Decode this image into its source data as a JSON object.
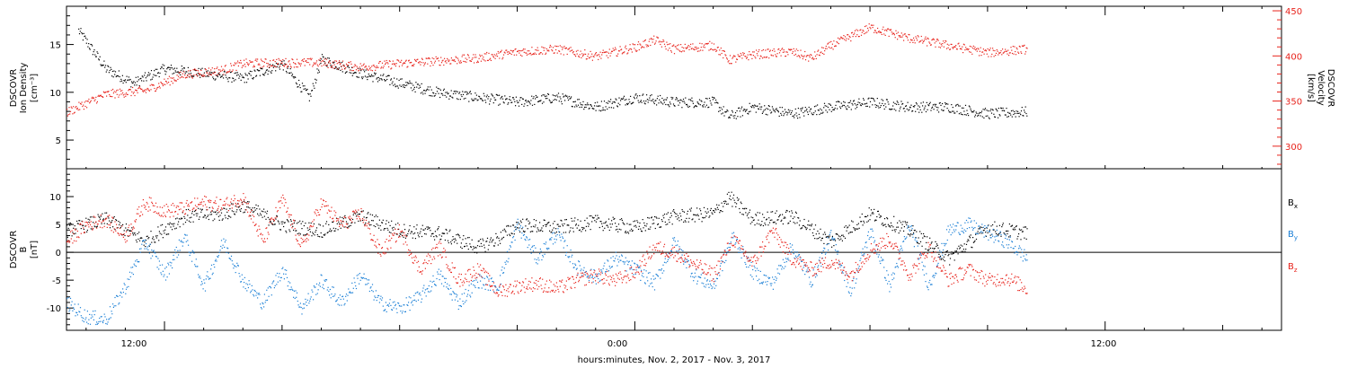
{
  "figure": {
    "xlabel": "hours:minutes, Nov.  2, 2017 - Nov.  3, 2017",
    "x_ticks": [
      "12:00",
      "0:00",
      "12:00"
    ],
    "x_range_hours": [
      -14.5,
      16.5
    ],
    "x_data_end_hours": 10.1
  },
  "chart_data": [
    {
      "type": "scatter",
      "panel": "plasma",
      "ylabel_lines": [
        "DSCOVR",
        "Ion  Density",
        "[cm⁻³]"
      ],
      "ylabel_right_lines": [
        "DSCOVR",
        "Velocity",
        "[km/s]"
      ],
      "yticks_left": [
        "5",
        "10",
        "15"
      ],
      "yticks_right": [
        "300",
        "350",
        "400",
        "450"
      ],
      "ylim_left": [
        2,
        19
      ],
      "ylim_right": [
        275,
        455
      ],
      "grid": false,
      "series": [
        {
          "axis": "left",
          "color": "#000000",
          "x": [
            -14.2,
            -13.5,
            -12.8,
            -12.0,
            -11.0,
            -10.0,
            -9.0,
            -8.3,
            -8.0,
            -7.0,
            -6.0,
            -5.0,
            -4.0,
            -3.0,
            -2.0,
            -1.0,
            0.0,
            1.0,
            2.0,
            2.4,
            3.0,
            4.0,
            5.0,
            6.0,
            7.0,
            8.0,
            9.0,
            10.0
          ],
          "y": [
            16.5,
            12.5,
            11.0,
            12.5,
            12.0,
            11.5,
            13.0,
            9.5,
            13.5,
            12.0,
            11.0,
            10.0,
            9.5,
            9.0,
            9.5,
            8.5,
            9.5,
            9.0,
            9.0,
            7.5,
            8.5,
            7.8,
            8.5,
            9.0,
            8.5,
            8.5,
            7.8,
            8.0
          ]
        },
        {
          "axis": "right",
          "color": "#e8231c",
          "x": [
            -14.5,
            -13.5,
            -12.5,
            -11.5,
            -10.5,
            -10.0,
            -9.0,
            -8.0,
            -7.0,
            -6.0,
            -5.0,
            -4.0,
            -3.0,
            -2.0,
            -1.0,
            0.0,
            0.5,
            1.0,
            2.0,
            2.4,
            3.0,
            4.0,
            4.5,
            5.0,
            6.0,
            7.0,
            8.0,
            9.0,
            10.0
          ],
          "y": [
            338,
            358,
            362,
            380,
            385,
            392,
            393,
            393,
            388,
            392,
            395,
            398,
            405,
            408,
            400,
            410,
            418,
            408,
            412,
            396,
            402,
            405,
            398,
            412,
            432,
            420,
            412,
            404,
            408
          ]
        }
      ]
    },
    {
      "type": "scatter",
      "panel": "magnetic",
      "ylabel_lines": [
        "DSCOVR",
        "B",
        "[nT]"
      ],
      "yticks_left": [
        "-10",
        "-5",
        "0",
        "5",
        "10"
      ],
      "ylim": [
        -14,
        15
      ],
      "zero_line": true,
      "grid": false,
      "legend_position": "right",
      "legend": [
        {
          "label": "B",
          "sub": "x",
          "color": "#000000"
        },
        {
          "label": "B",
          "sub": "y",
          "color": "#1a7fd6"
        },
        {
          "label": "B",
          "sub": "z",
          "color": "#e8231c"
        }
      ],
      "series": [
        {
          "name": "Bx",
          "color": "#000000",
          "x": [
            -14.5,
            -13.5,
            -12.5,
            -11.5,
            -10.5,
            -10.0,
            -9.0,
            -8.0,
            -7.0,
            -6.0,
            -5.0,
            -4.0,
            -3.5,
            -3.0,
            -2.0,
            -1.0,
            0.0,
            1.0,
            2.0,
            2.4,
            3.0,
            4.0,
            5.0,
            6.0,
            7.0,
            8.0,
            9.0,
            10.0
          ],
          "y": [
            4.0,
            6.0,
            2.0,
            6.5,
            7.0,
            8.5,
            5.0,
            4.0,
            6.5,
            4.0,
            3.5,
            1.0,
            2.5,
            5.0,
            4.5,
            5.5,
            4.5,
            6.5,
            7.0,
            10.0,
            6.0,
            6.5,
            2.0,
            7.0,
            4.0,
            -1.0,
            4.5,
            3.5
          ]
        },
        {
          "name": "By",
          "color": "#1a7fd6",
          "x": [
            -14.5,
            -14.0,
            -13.5,
            -13.0,
            -12.5,
            -12.0,
            -11.5,
            -11.0,
            -10.5,
            -10.0,
            -9.5,
            -9.0,
            -8.5,
            -8.0,
            -7.5,
            -7.0,
            -6.5,
            -6.0,
            -5.5,
            -5.0,
            -4.5,
            -4.0,
            -3.5,
            -3.0,
            -2.5,
            -2.0,
            -1.5,
            -1.0,
            -0.5,
            0.0,
            0.5,
            1.0,
            1.5,
            2.0,
            2.5,
            3.0,
            3.5,
            4.0,
            4.5,
            5.0,
            5.5,
            6.0,
            6.5,
            7.0,
            7.5,
            8.0,
            8.5,
            9.0,
            9.5,
            10.0
          ],
          "y": [
            -9.0,
            -11.5,
            -12.0,
            -6.0,
            2.0,
            -4.0,
            3.0,
            -6.0,
            2.0,
            -5.0,
            -9.0,
            -3.0,
            -10.0,
            -5.0,
            -9.0,
            -4.0,
            -9.0,
            -10.0,
            -8.0,
            -4.0,
            -9.0,
            -5.0,
            -6.0,
            5.0,
            -1.0,
            3.5,
            -2.5,
            -4.5,
            -1.0,
            -3.0,
            -5.5,
            2.0,
            -4.0,
            -6.0,
            3.0,
            -3.5,
            -5.5,
            1.0,
            -5.0,
            3.0,
            -7.0,
            4.0,
            -6.0,
            5.0,
            -6.0,
            4.0,
            5.0,
            3.5,
            2.0,
            -1.0
          ]
        },
        {
          "name": "Bz",
          "color": "#e8231c",
          "x": [
            -14.5,
            -14.0,
            -13.5,
            -13.0,
            -12.5,
            -12.0,
            -11.5,
            -11.0,
            -10.5,
            -10.0,
            -9.5,
            -9.0,
            -8.5,
            -8.0,
            -7.5,
            -7.0,
            -6.5,
            -6.0,
            -5.5,
            -5.0,
            -4.5,
            -4.0,
            -3.5,
            -3.0,
            -2.5,
            -2.0,
            -1.5,
            -1.0,
            -0.5,
            0.0,
            0.5,
            1.0,
            1.5,
            2.0,
            2.5,
            3.0,
            3.5,
            4.0,
            4.5,
            5.0,
            5.5,
            6.0,
            6.5,
            7.0,
            7.5,
            8.0,
            8.5,
            9.0,
            9.5,
            10.0
          ],
          "y": [
            2.0,
            5.0,
            6.0,
            3.0,
            9.0,
            7.5,
            8.0,
            9.0,
            8.5,
            10.0,
            2.0,
            9.5,
            1.0,
            9.0,
            5.0,
            7.0,
            0.0,
            4.0,
            -3.0,
            1.0,
            -5.0,
            -3.0,
            -7.0,
            -6.0,
            -5.5,
            -6.5,
            -5.0,
            -4.0,
            -5.0,
            -3.5,
            1.0,
            0.0,
            -2.0,
            -4.0,
            2.5,
            -2.0,
            4.0,
            -1.0,
            -3.0,
            -1.5,
            -4.0,
            0.5,
            2.5,
            -4.0,
            1.0,
            -5.0,
            -3.0,
            -5.0,
            -4.5,
            -6.5
          ]
        }
      ]
    }
  ]
}
